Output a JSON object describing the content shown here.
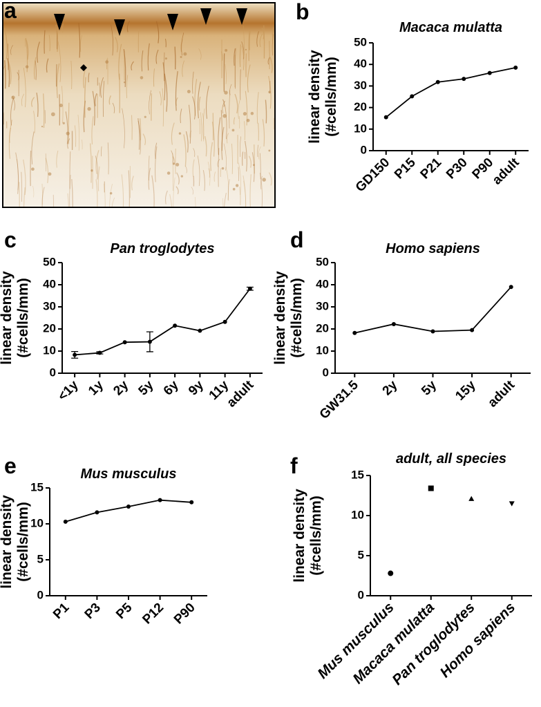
{
  "image_panel": {
    "panel": "a"
  },
  "chart_data": [
    {
      "type": "line",
      "panel": "b",
      "title": "Macaca mulatta",
      "ylabel": [
        "linear  density",
        "(#cells/mm)"
      ],
      "categories": [
        "GD150",
        "P15",
        "P21",
        "P30",
        "P90",
        "adult"
      ],
      "values": [
        15.5,
        25.2,
        31.8,
        33.3,
        36.0,
        38.5
      ],
      "color": "#000000",
      "ylim": [
        0,
        50
      ],
      "yticks": [
        0,
        10,
        20,
        30,
        40,
        50
      ]
    },
    {
      "type": "line",
      "panel": "c",
      "title": "Pan troglodytes",
      "ylabel": [
        "linear  density",
        "(#cells/mm)"
      ],
      "categories": [
        "<1y",
        "1y",
        "2y",
        "5y",
        "6y",
        "9y",
        "11y",
        "adult"
      ],
      "values": [
        8.3,
        9.2,
        14.0,
        14.2,
        21.5,
        19.2,
        23.2,
        38.2
      ],
      "errors": [
        1.5,
        0.5,
        null,
        4.5,
        null,
        null,
        null,
        0.7
      ],
      "color": "#000000",
      "ylim": [
        0,
        50
      ],
      "yticks": [
        0,
        10,
        20,
        30,
        40,
        50
      ]
    },
    {
      "type": "line",
      "panel": "d",
      "title": "Homo sapiens",
      "ylabel": [
        "linear  density",
        "(#cells/mm)"
      ],
      "categories": [
        "GW31.5",
        "2y",
        "5y",
        "15y",
        "adult"
      ],
      "values": [
        18.2,
        22.2,
        18.9,
        19.5,
        39.0
      ],
      "color": "#000000",
      "ylim": [
        0,
        50
      ],
      "yticks": [
        0,
        10,
        20,
        30,
        40,
        50
      ]
    },
    {
      "type": "line",
      "panel": "e",
      "title": "Mus musculus",
      "ylabel": [
        "linear  density",
        "(#cells/mm)"
      ],
      "categories": [
        "P1",
        "P3",
        "P5",
        "P12",
        "P90"
      ],
      "values": [
        10.3,
        11.6,
        12.4,
        13.3,
        13.0
      ],
      "color": "#000000",
      "ylim": [
        0,
        15
      ],
      "yticks": [
        0,
        5,
        10,
        15
      ]
    },
    {
      "type": "dot",
      "panel": "f",
      "title": "adult, all species",
      "ylabel": [
        "linear  density",
        "(#cells/mm)"
      ],
      "categories": [
        "Mus musculus",
        "Macaca mulatta",
        "Pan troglodytes",
        "Homo sapiens"
      ],
      "values": [
        2.8,
        13.4,
        12.1,
        11.5
      ],
      "markers": [
        "circle",
        "square",
        "triangle",
        "triangle-down"
      ],
      "color": "#000000",
      "ylim": [
        0,
        15
      ],
      "yticks": [
        0,
        5,
        10,
        15
      ]
    }
  ]
}
